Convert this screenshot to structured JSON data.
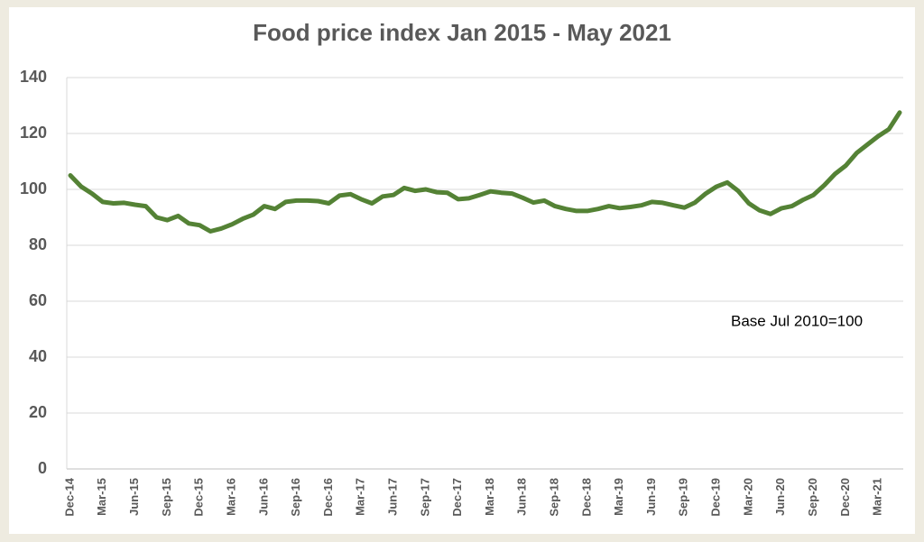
{
  "chart_data": {
    "type": "line",
    "title": "Food price index Jan 2015 - May 2021",
    "annotation": "Base Jul 2010=100",
    "categories": [
      "Dec-14",
      null,
      null,
      "Mar-15",
      null,
      null,
      "Jun-15",
      null,
      null,
      "Sep-15",
      null,
      null,
      "Dec-15",
      null,
      null,
      "Mar-16",
      null,
      null,
      "Jun-16",
      null,
      null,
      "Sep-16",
      null,
      null,
      "Dec-16",
      null,
      null,
      "Mar-17",
      null,
      null,
      "Jun-17",
      null,
      null,
      "Sep-17",
      null,
      null,
      "Dec-17",
      null,
      null,
      "Mar-18",
      null,
      null,
      "Jun-18",
      null,
      null,
      "Sep-18",
      null,
      null,
      "Dec-18",
      null,
      null,
      "Mar-19",
      null,
      null,
      "Jun-19",
      null,
      null,
      "Sep-19",
      null,
      null,
      "Dec-19",
      null,
      null,
      "Mar-20",
      null,
      null,
      "Jun-20",
      null,
      null,
      "Sep-20",
      null,
      null,
      "Dec-20",
      null,
      null,
      "Mar-21",
      null,
      null
    ],
    "values": [
      105,
      101,
      98.5,
      95.5,
      95,
      95.2,
      94.5,
      94,
      90,
      89,
      90.5,
      87.8,
      87.2,
      85,
      86,
      87.5,
      89.5,
      91,
      94,
      93,
      95.5,
      96,
      96,
      95.8,
      95,
      97.8,
      98.3,
      96.5,
      95,
      97.5,
      98,
      100.5,
      99.5,
      100,
      99,
      98.8,
      96.5,
      96.8,
      98,
      99.3,
      98.8,
      98.5,
      97,
      95.3,
      96,
      94,
      93,
      92.3,
      92.3,
      93,
      94,
      93.3,
      93.7,
      94.3,
      95.5,
      95.2,
      94.3,
      93.5,
      95.3,
      98.5,
      101,
      102.5,
      99.5,
      95,
      92.5,
      91.2,
      93.2,
      94,
      96.2,
      98,
      101.5,
      105.5,
      108.5,
      113,
      116,
      119,
      121.5,
      127.5
    ],
    "color": "#548235",
    "ylim": [
      0,
      140
    ],
    "yticks": [
      0,
      20,
      40,
      60,
      80,
      100,
      120,
      140
    ],
    "grid": true
  }
}
